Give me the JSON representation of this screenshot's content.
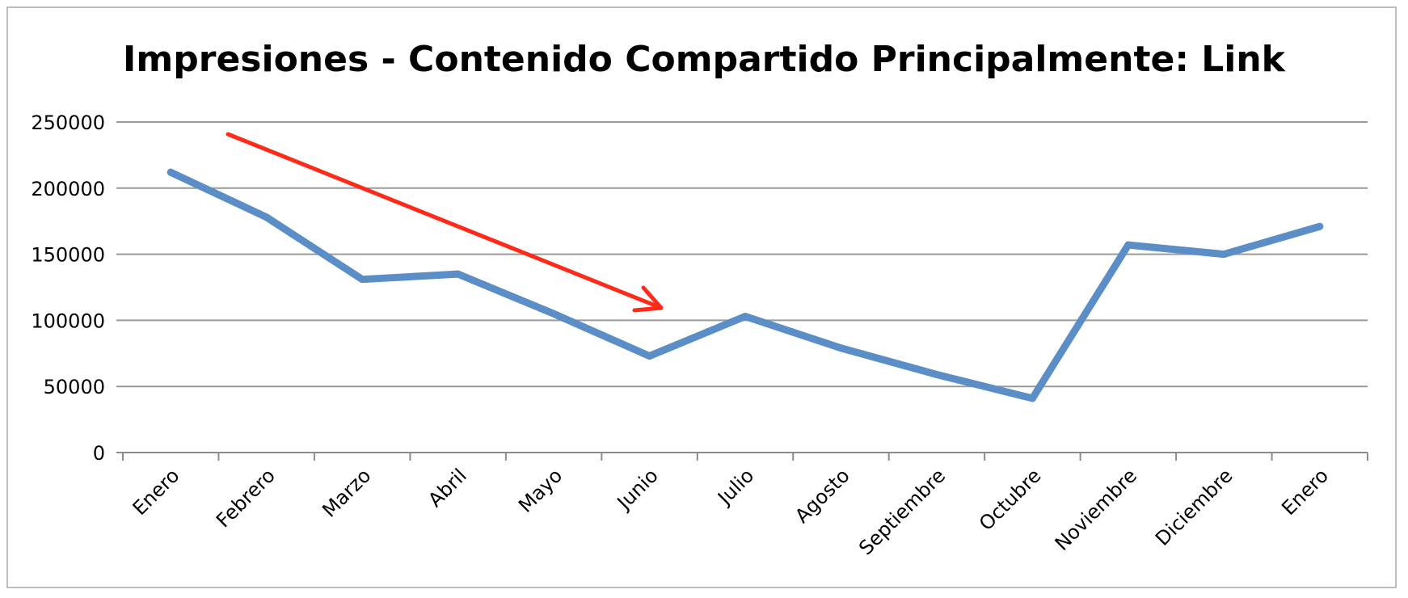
{
  "chart_data": {
    "type": "line",
    "title": "Impresiones - Contenido Compartido Principalmente: Link",
    "xlabel": "",
    "ylabel": "",
    "categories": [
      "Enero",
      "Febrero",
      "Marzo",
      "Abril",
      "Mayo",
      "Junio",
      "Julio",
      "Agosto",
      "Septiembre",
      "Octubre",
      "Noviembre",
      "Diciembre",
      "Enero"
    ],
    "series": [
      {
        "values": [
          212000,
          178000,
          131000,
          135000,
          105000,
          73000,
          103000,
          79000,
          59000,
          41000,
          157000,
          150000,
          171000
        ],
        "color": "#5b8ec7"
      }
    ],
    "ylim": [
      0,
      250000
    ],
    "yticks": [
      "0",
      "50000",
      "100000",
      "150000",
      "200000",
      "250000"
    ],
    "grid": true,
    "legend": "none",
    "annotation": {
      "type": "arrow",
      "color": "#ff2a1a",
      "description": "downward trend arrow"
    }
  }
}
